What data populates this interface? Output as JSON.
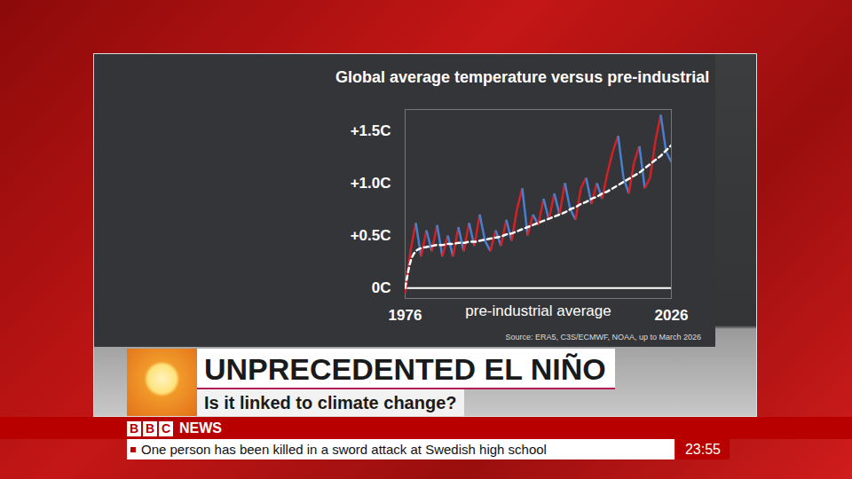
{
  "chart_data": {
    "type": "line",
    "title": "Global average temperature versus pre-industrial",
    "annotation": "pre-industrial average",
    "source": "Source: ERA5, C3S/ECMWF, NOAA, up to March 2026",
    "x": [
      1976,
      1977,
      1978,
      1979,
      1980,
      1981,
      1982,
      1983,
      1984,
      1985,
      1986,
      1987,
      1988,
      1989,
      1990,
      1991,
      1992,
      1993,
      1994,
      1995,
      1996,
      1997,
      1998,
      1999,
      2000,
      2001,
      2002,
      2003,
      2004,
      2005,
      2006,
      2007,
      2008,
      2009,
      2010,
      2011,
      2012,
      2013,
      2014,
      2015,
      2016,
      2017,
      2018,
      2019,
      2020,
      2021,
      2022,
      2023,
      2024,
      2025,
      2026
    ],
    "series": [
      {
        "values": [
          -0.05,
          0.35,
          0.62,
          0.3,
          0.55,
          0.35,
          0.6,
          0.3,
          0.5,
          0.3,
          0.58,
          0.35,
          0.62,
          0.4,
          0.7,
          0.45,
          0.35,
          0.55,
          0.4,
          0.65,
          0.45,
          0.75,
          0.95,
          0.5,
          0.7,
          0.6,
          0.85,
          0.65,
          0.9,
          0.7,
          1.0,
          0.75,
          0.65,
          0.95,
          1.05,
          0.8,
          1.0,
          0.85,
          1.1,
          1.3,
          1.45,
          1.05,
          0.9,
          1.2,
          1.35,
          0.95,
          1.05,
          1.4,
          1.65,
          1.3,
          1.2
        ],
        "colors": [
          "#4a7fd0",
          "#d42027",
          "#d42027",
          "#4a7fd0",
          "#d42027",
          "#4a7fd0",
          "#d42027",
          "#4a7fd0",
          "#d42027",
          "#4a7fd0",
          "#d42027",
          "#4a7fd0",
          "#d42027",
          "#4a7fd0",
          "#d42027",
          "#4a7fd0",
          "#4a7fd0",
          "#d42027",
          "#4a7fd0",
          "#d42027",
          "#4a7fd0",
          "#d42027",
          "#d42027",
          "#4a7fd0",
          "#d42027",
          "#4a7fd0",
          "#d42027",
          "#4a7fd0",
          "#d42027",
          "#4a7fd0",
          "#d42027",
          "#4a7fd0",
          "#4a7fd0",
          "#d42027",
          "#d42027",
          "#4a7fd0",
          "#d42027",
          "#4a7fd0",
          "#d42027",
          "#d42027",
          "#d42027",
          "#4a7fd0",
          "#4a7fd0",
          "#d42027",
          "#d42027",
          "#4a7fd0",
          "#d42027",
          "#d42027",
          "#d42027",
          "#4a7fd0",
          "#4a7fd0"
        ],
        "line_style": "solid"
      },
      {
        "values": [
          0,
          0.25,
          0.35,
          0.38,
          0.39,
          0.4,
          0.41,
          0.41,
          0.42,
          0.42,
          0.43,
          0.43,
          0.44,
          0.44,
          0.45,
          0.46,
          0.47,
          0.48,
          0.49,
          0.51,
          0.52,
          0.54,
          0.56,
          0.58,
          0.6,
          0.62,
          0.64,
          0.66,
          0.68,
          0.7,
          0.72,
          0.75,
          0.77,
          0.8,
          0.82,
          0.85,
          0.87,
          0.9,
          0.92,
          0.95,
          0.98,
          1.01,
          1.04,
          1.07,
          1.1,
          1.14,
          1.18,
          1.22,
          1.26,
          1.31,
          1.36
        ],
        "color": "#ffffff",
        "line_style": "dashed"
      }
    ],
    "xlim": [
      1976,
      2026
    ],
    "xticks": [
      1976,
      2026
    ],
    "ylim": [
      -0.1,
      1.7
    ],
    "yticks": [
      {
        "value": 0,
        "label": "0C"
      },
      {
        "value": 0.5,
        "label": "+0.5C"
      },
      {
        "value": 1.0,
        "label": "+1.0C"
      },
      {
        "value": 1.5,
        "label": "+1.5C"
      }
    ],
    "grid": false
  },
  "screen": {
    "headline": "UNPRECEDENTED EL NIÑO",
    "subheadline": "Is it linked to climate change?",
    "channel": "BBC NEWS",
    "ticker": "One person has been killed in a sword attack at Swedish high school",
    "time": "23:55"
  }
}
